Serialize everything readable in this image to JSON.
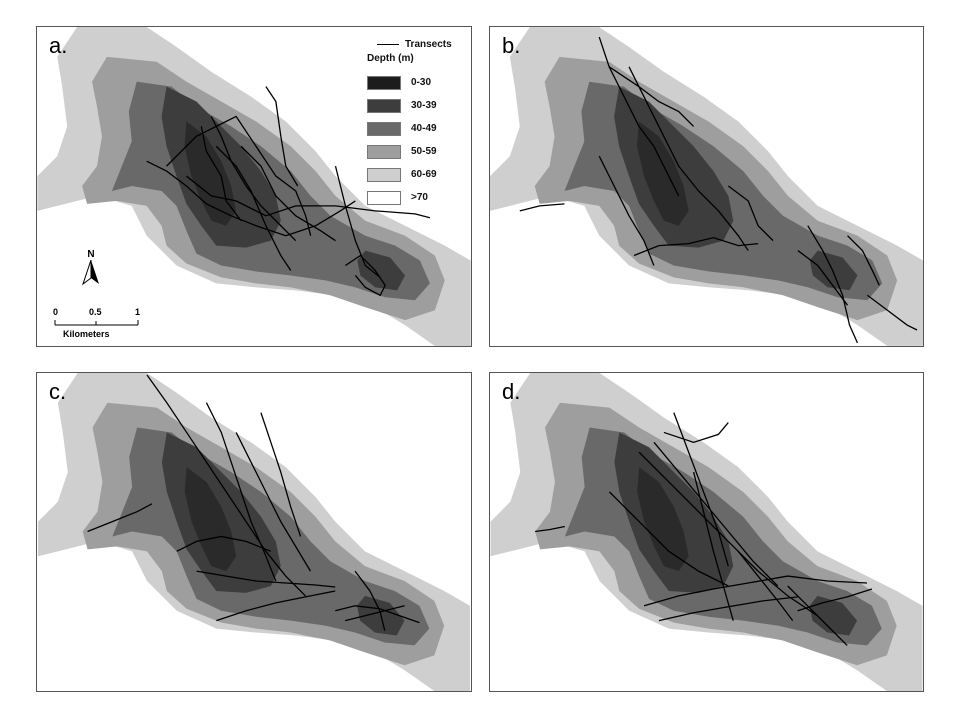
{
  "panels": [
    {
      "label": "a."
    },
    {
      "label": "b."
    },
    {
      "label": "c."
    },
    {
      "label": "d."
    }
  ],
  "legend": {
    "transects_label": "Transects",
    "depth_title": "Depth (m)",
    "classes": [
      {
        "label": "0-30",
        "color": "#1c1c1c"
      },
      {
        "label": "30-39",
        "color": "#3d3d3d"
      },
      {
        "label": "40-49",
        "color": "#696969"
      },
      {
        "label": "50-59",
        "color": "#9e9e9e"
      },
      {
        "label": "60-69",
        "color": "#cfcfcf"
      },
      {
        "label": ">70",
        "color": "#ffffff"
      }
    ]
  },
  "north_arrow": {
    "label": "N"
  },
  "scale_bar": {
    "ticks": [
      "0",
      "0.5",
      "1"
    ],
    "units": "Kilometers"
  }
}
